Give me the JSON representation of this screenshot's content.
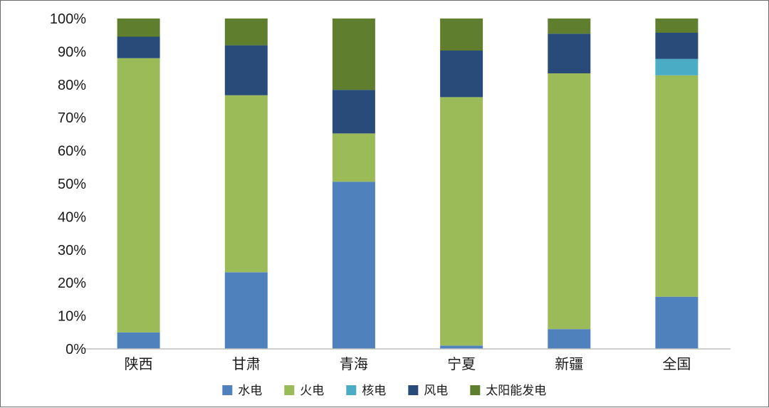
{
  "chart_data": {
    "type": "bar",
    "stacked": true,
    "categories": [
      "陕西",
      "甘肃",
      "青海",
      "宁夏",
      "新疆",
      "全国"
    ],
    "series": [
      {
        "name": "水电",
        "color": "#4f81bd",
        "values": [
          5.0,
          23.2,
          50.6,
          1.0,
          6.0,
          15.8
        ]
      },
      {
        "name": "火电",
        "color": "#9bbb59",
        "values": [
          83.0,
          53.6,
          14.6,
          75.2,
          77.4,
          67.0
        ]
      },
      {
        "name": "核电",
        "color": "#4bacc6",
        "values": [
          0,
          0,
          0,
          0,
          0,
          5.0
        ]
      },
      {
        "name": "风电",
        "color": "#284b7a",
        "values": [
          6.5,
          15.1,
          13.2,
          14.1,
          12.0,
          7.9
        ]
      },
      {
        "name": "太阳能发电",
        "color": "#607f2e",
        "values": [
          5.5,
          8.1,
          21.6,
          9.7,
          4.6,
          4.3
        ]
      }
    ],
    "yticks": [
      "0%",
      "10%",
      "20%",
      "30%",
      "40%",
      "50%",
      "60%",
      "70%",
      "80%",
      "90%",
      "100%"
    ],
    "ylim": [
      0,
      100
    ],
    "legend": "bottom",
    "grid": false
  }
}
